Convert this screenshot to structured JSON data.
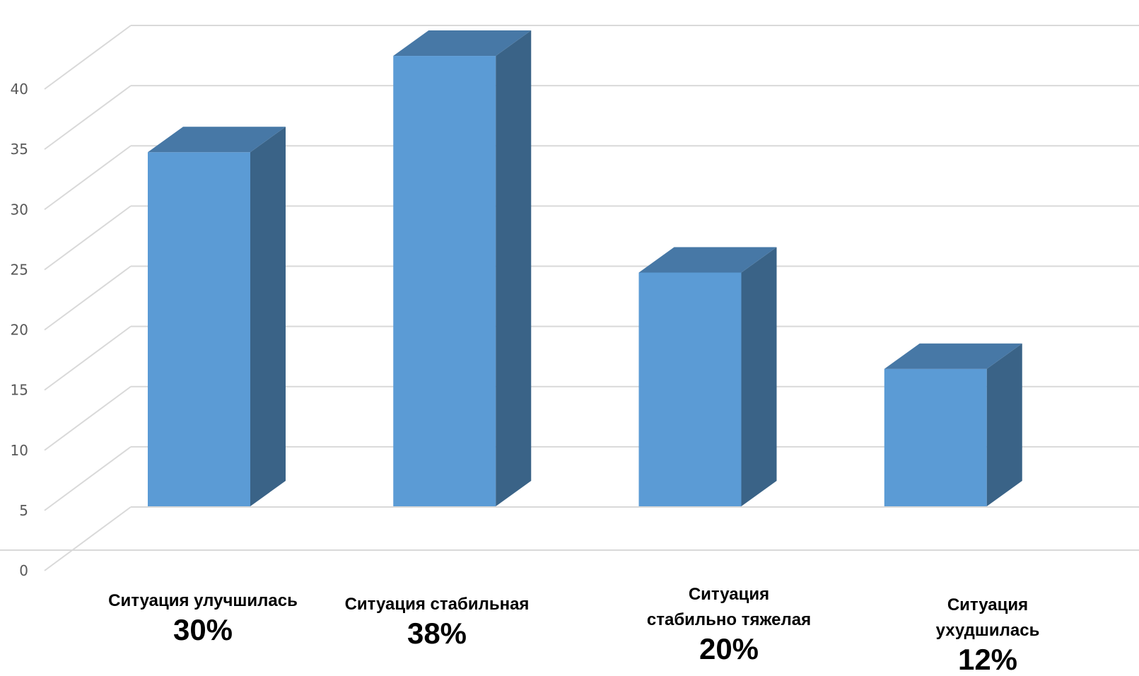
{
  "chart_data": {
    "type": "bar",
    "style": "3d-column",
    "categories": [
      "Ситуация улучшилась",
      "Ситуация стабильная",
      "Ситуация\nстабильно тяжелая",
      "Ситуация ухудшилась"
    ],
    "values": [
      30,
      38,
      20,
      12
    ],
    "percent_labels": [
      "30%",
      "38%",
      "20%",
      "12%"
    ],
    "ylim": [
      0,
      40
    ],
    "yticks": [
      0,
      5,
      10,
      15,
      20,
      25,
      30,
      35,
      40
    ],
    "grid": true,
    "legend": false,
    "title": "",
    "xlabel": "",
    "ylabel": "",
    "colors": {
      "front": "#5B9BD5",
      "top": "#4778A6",
      "side": "#3A6387",
      "grid": "#D9D9D9",
      "tick_text": "#595959"
    }
  }
}
